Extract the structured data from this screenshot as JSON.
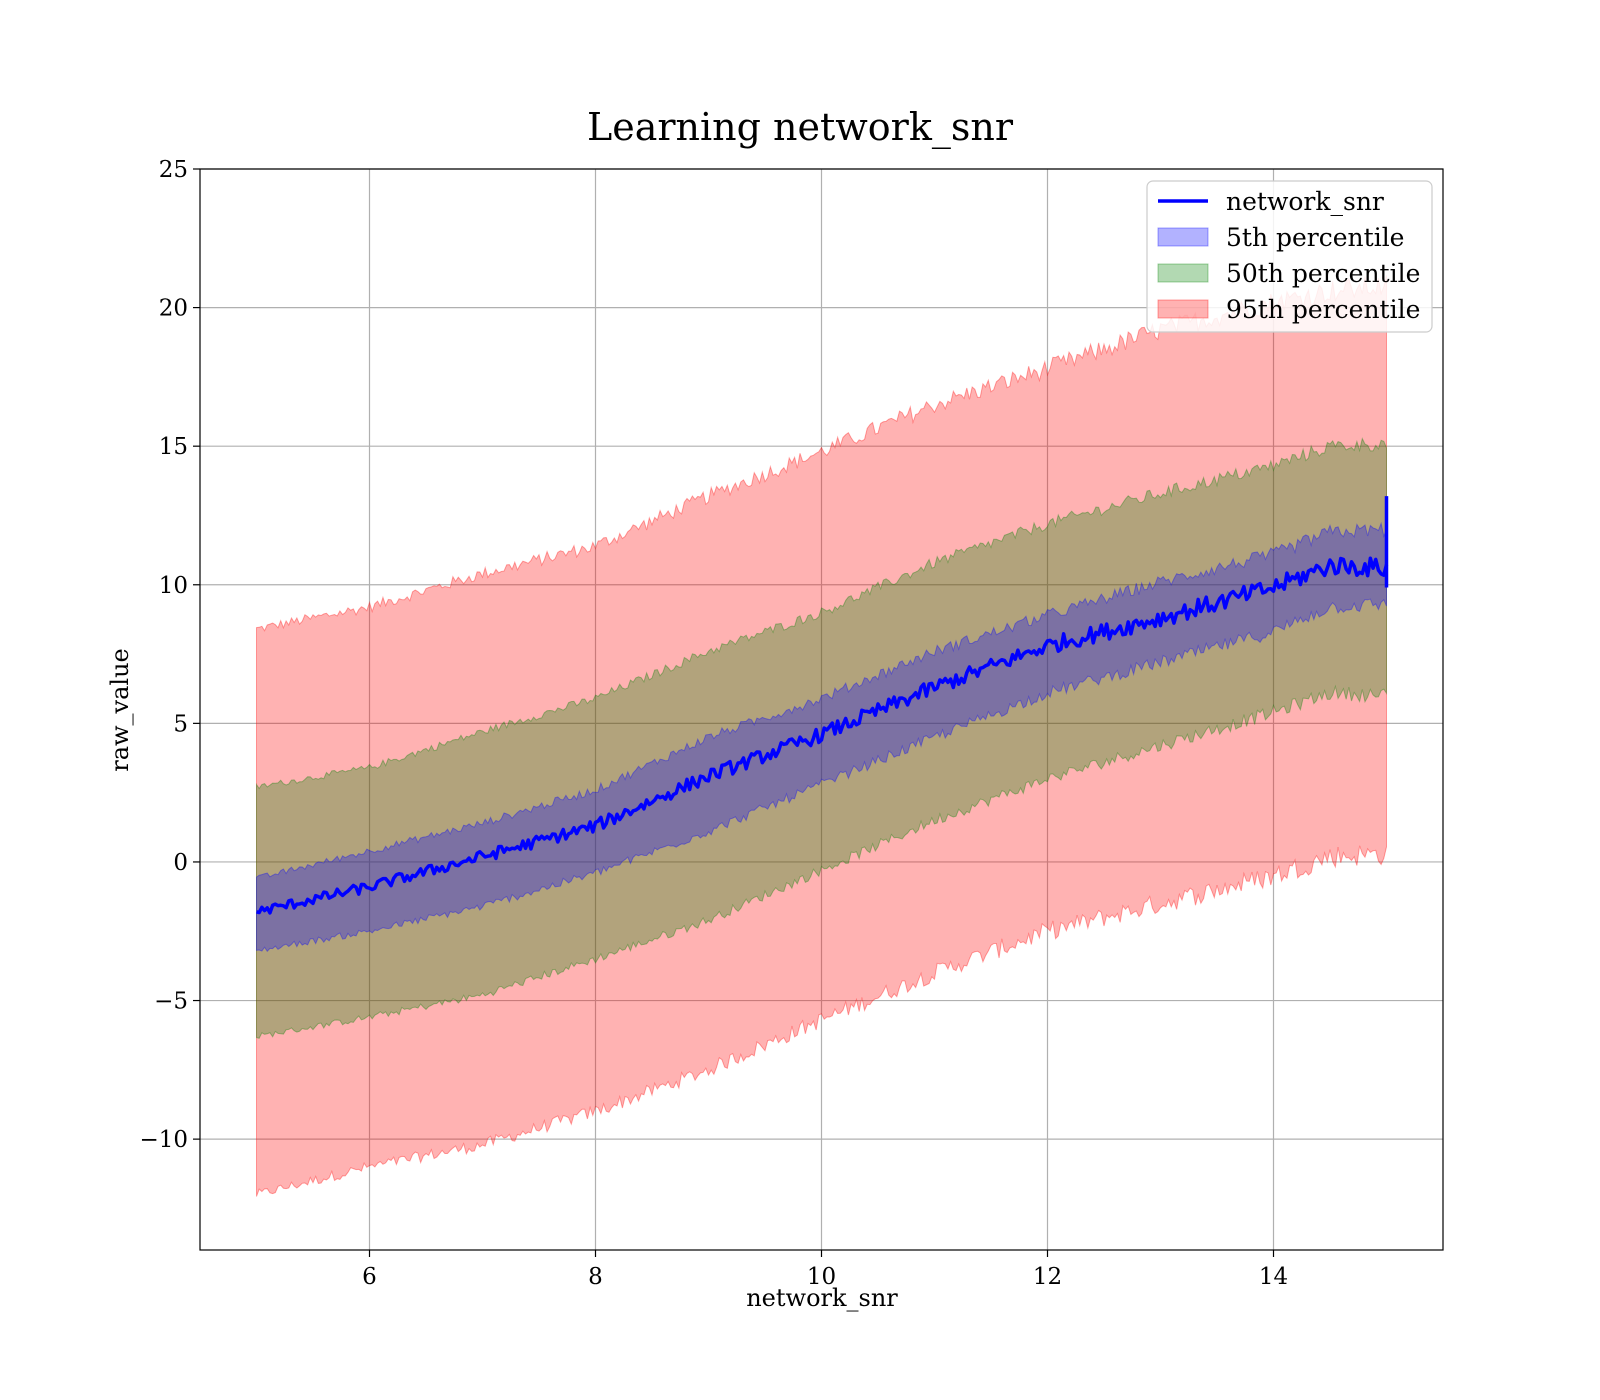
{
  "chart_data": {
    "type": "area",
    "title": "Learning network_snr",
    "xlabel": "network_snr",
    "ylabel": "raw_value",
    "xlim": [
      4.5,
      15.5
    ],
    "ylim": [
      -14,
      25
    ],
    "xticks": [
      6,
      8,
      10,
      12,
      14
    ],
    "yticks": [
      -10,
      -5,
      0,
      5,
      10,
      15,
      20,
      25
    ],
    "xtick_labels": [
      "6",
      "8",
      "10",
      "12",
      "14"
    ],
    "ytick_labels": [
      "−10",
      "−5",
      "0",
      "5",
      "10",
      "15",
      "20",
      "25"
    ],
    "grid": true,
    "legend_position": "top-right",
    "legend_entries": [
      "network_snr",
      "5th percentile",
      "50th percentile",
      "95th percentile"
    ],
    "x_range": [
      5,
      15
    ],
    "line": {
      "name": "network_snr",
      "color": "#0000ff",
      "x": [
        5,
        6,
        7,
        8,
        9,
        10,
        11,
        12,
        13,
        14,
        14.5,
        15
      ],
      "y": [
        -1.8,
        -0.9,
        0.2,
        1.3,
        3.1,
        4.6,
        6.3,
        7.8,
        8.8,
        9.9,
        10.7,
        10.6
      ]
    },
    "bands": [
      {
        "name": "95th percentile",
        "color": "#ff0000",
        "opacity": 0.3,
        "x": [
          5,
          6,
          7,
          8,
          9,
          10,
          11,
          12,
          13,
          14,
          14.5,
          15
        ],
        "lower": [
          -12.0,
          -11.0,
          -10.2,
          -9.0,
          -7.5,
          -5.7,
          -4.0,
          -2.5,
          -1.5,
          -0.5,
          0.2,
          0.3
        ],
        "upper": [
          8.4,
          9.2,
          10.4,
          11.4,
          13.2,
          14.8,
          16.5,
          17.8,
          19.2,
          20.2,
          20.6,
          20.8
        ]
      },
      {
        "name": "50th percentile",
        "color": "#008000",
        "opacity": 0.3,
        "x": [
          5,
          6,
          7,
          8,
          9,
          10,
          11,
          12,
          13,
          14,
          14.5,
          15
        ],
        "lower": [
          -6.3,
          -5.6,
          -4.8,
          -3.5,
          -2.1,
          -0.3,
          1.5,
          3.0,
          4.2,
          5.4,
          6.1,
          6.0
        ],
        "upper": [
          2.7,
          3.4,
          4.7,
          5.9,
          7.6,
          9.0,
          10.8,
          12.2,
          13.3,
          14.3,
          15.0,
          15.1
        ]
      },
      {
        "name": "5th percentile",
        "color": "#0000ff",
        "opacity": 0.3,
        "x": [
          5,
          6,
          7,
          8,
          9,
          10,
          11,
          12,
          13,
          14,
          14.5,
          15
        ],
        "lower": [
          -3.2,
          -2.5,
          -1.6,
          -0.4,
          1.1,
          2.8,
          4.5,
          6.1,
          7.2,
          8.3,
          9.2,
          9.3
        ],
        "upper": [
          -0.6,
          0.4,
          1.4,
          2.6,
          4.5,
          5.9,
          7.6,
          8.9,
          10.1,
          11.1,
          11.9,
          12.0
        ]
      }
    ]
  }
}
